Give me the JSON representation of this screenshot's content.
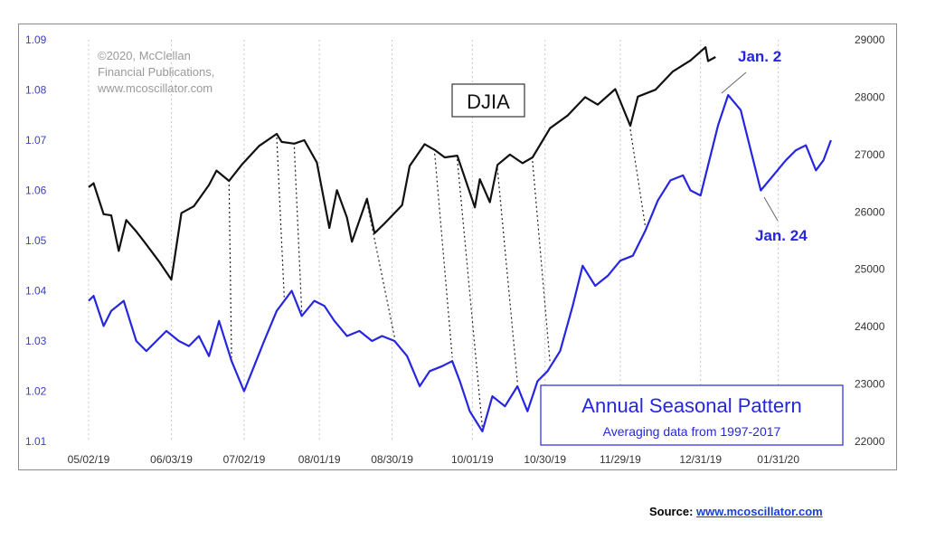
{
  "chart_data": {
    "type": "line",
    "title": "DJIA",
    "copyright": [
      "©2020, McClellan",
      "Financial Publications,",
      "www.mcoscillator.com"
    ],
    "x_ticks": [
      "05/02/19",
      "06/03/19",
      "07/02/19",
      "08/01/19",
      "08/30/19",
      "10/01/19",
      "10/30/19",
      "11/29/19",
      "12/31/19",
      "01/31/20"
    ],
    "left_axis": {
      "ticks": [
        "1.01",
        "1.02",
        "1.03",
        "1.04",
        "1.05",
        "1.06",
        "1.07",
        "1.08",
        "1.09"
      ],
      "ylim": [
        1.01,
        1.09
      ],
      "color": "#3b3bd4"
    },
    "right_axis": {
      "ticks": [
        "22000",
        "23000",
        "24000",
        "25000",
        "26000",
        "27000",
        "28000",
        "29000"
      ],
      "ylim": [
        22000,
        29000
      ],
      "color": "#333333"
    },
    "series": [
      {
        "name": "DJIA",
        "axis": "right",
        "color": "#111111",
        "x": [
          "2019-05-01",
          "2019-05-03",
          "2019-05-07",
          "2019-05-10",
          "2019-05-13",
          "2019-05-16",
          "2019-05-20",
          "2019-05-23",
          "2019-05-29",
          "2019-06-03",
          "2019-06-07",
          "2019-06-12",
          "2019-06-18",
          "2019-06-21",
          "2019-06-26",
          "2019-07-01",
          "2019-07-08",
          "2019-07-15",
          "2019-07-17",
          "2019-07-22",
          "2019-07-26",
          "2019-07-31",
          "2019-08-05",
          "2019-08-08",
          "2019-08-12",
          "2019-08-14",
          "2019-08-20",
          "2019-08-23",
          "2019-08-27",
          "2019-09-03",
          "2019-09-06",
          "2019-09-12",
          "2019-09-16",
          "2019-09-20",
          "2019-09-25",
          "2019-10-02",
          "2019-10-04",
          "2019-10-08",
          "2019-10-11",
          "2019-10-16",
          "2019-10-21",
          "2019-10-25",
          "2019-11-01",
          "2019-11-08",
          "2019-11-15",
          "2019-11-20",
          "2019-11-27",
          "2019-12-03",
          "2019-12-06",
          "2019-12-13",
          "2019-12-20",
          "2019-12-27",
          "2020-01-02",
          "2020-01-03",
          "2020-01-06"
        ],
        "values": [
          26430,
          26500,
          25960,
          25940,
          25320,
          25860,
          25660,
          25490,
          25140,
          24820,
          25980,
          26100,
          26470,
          26720,
          26540,
          26820,
          27150,
          27360,
          27220,
          27190,
          27250,
          26860,
          25720,
          26380,
          25900,
          25480,
          26230,
          25630,
          25800,
          26120,
          26800,
          27180,
          27080,
          26950,
          26980,
          26080,
          26570,
          26170,
          26820,
          27000,
          26850,
          26950,
          27460,
          27680,
          28000,
          27870,
          28140,
          27500,
          28010,
          28130,
          28450,
          28640,
          28870,
          28630,
          28700
        ]
      },
      {
        "name": "Annual Seasonal Pattern",
        "subtitle": "Averaging data from 1997-2017",
        "axis": "left",
        "color": "#2626e0",
        "x": [
          "2019-05-01",
          "2019-05-03",
          "2019-05-07",
          "2019-05-10",
          "2019-05-15",
          "2019-05-20",
          "2019-05-24",
          "2019-05-28",
          "2019-06-01",
          "2019-06-06",
          "2019-06-10",
          "2019-06-14",
          "2019-06-18",
          "2019-06-22",
          "2019-06-27",
          "2019-07-02",
          "2019-07-06",
          "2019-07-10",
          "2019-07-15",
          "2019-07-18",
          "2019-07-21",
          "2019-07-25",
          "2019-07-30",
          "2019-08-03",
          "2019-08-07",
          "2019-08-12",
          "2019-08-17",
          "2019-08-22",
          "2019-08-26",
          "2019-08-31",
          "2019-09-05",
          "2019-09-10",
          "2019-09-14",
          "2019-09-19",
          "2019-09-23",
          "2019-09-26",
          "2019-09-30",
          "2019-10-05",
          "2019-10-09",
          "2019-10-14",
          "2019-10-19",
          "2019-10-23",
          "2019-10-27",
          "2019-10-31",
          "2019-11-05",
          "2019-11-10",
          "2019-11-14",
          "2019-11-19",
          "2019-11-24",
          "2019-11-29",
          "2019-12-04",
          "2019-12-09",
          "2019-12-14",
          "2019-12-19",
          "2019-12-24",
          "2019-12-27",
          "2019-12-31",
          "2020-01-03",
          "2020-01-07",
          "2020-01-11",
          "2020-01-16",
          "2020-01-20",
          "2020-01-24",
          "2020-01-29",
          "2020-02-03",
          "2020-02-07",
          "2020-02-11",
          "2020-02-15",
          "2020-02-18",
          "2020-02-21"
        ],
        "values": [
          1.038,
          1.039,
          1.033,
          1.036,
          1.038,
          1.03,
          1.028,
          1.03,
          1.032,
          1.03,
          1.029,
          1.031,
          1.027,
          1.034,
          1.026,
          1.02,
          1.025,
          1.03,
          1.036,
          1.038,
          1.04,
          1.035,
          1.038,
          1.037,
          1.034,
          1.031,
          1.032,
          1.03,
          1.031,
          1.03,
          1.027,
          1.021,
          1.024,
          1.025,
          1.026,
          1.022,
          1.016,
          1.012,
          1.019,
          1.017,
          1.021,
          1.016,
          1.022,
          1.024,
          1.028,
          1.037,
          1.045,
          1.041,
          1.043,
          1.046,
          1.047,
          1.052,
          1.058,
          1.062,
          1.063,
          1.06,
          1.059,
          1.065,
          1.073,
          1.079,
          1.076,
          1.068,
          1.06,
          1.063,
          1.066,
          1.068,
          1.069,
          1.064,
          1.066,
          1.07
        ]
      }
    ],
    "annotations": [
      {
        "text": "Jan. 2",
        "color": "#2626e0"
      },
      {
        "text": "Jan. 24",
        "color": "#2626e0"
      }
    ],
    "grid": "vertical dotted",
    "legend": "bottom-right box"
  },
  "source": {
    "label": "Source:",
    "link_text": "www.mcoscillator.com"
  }
}
